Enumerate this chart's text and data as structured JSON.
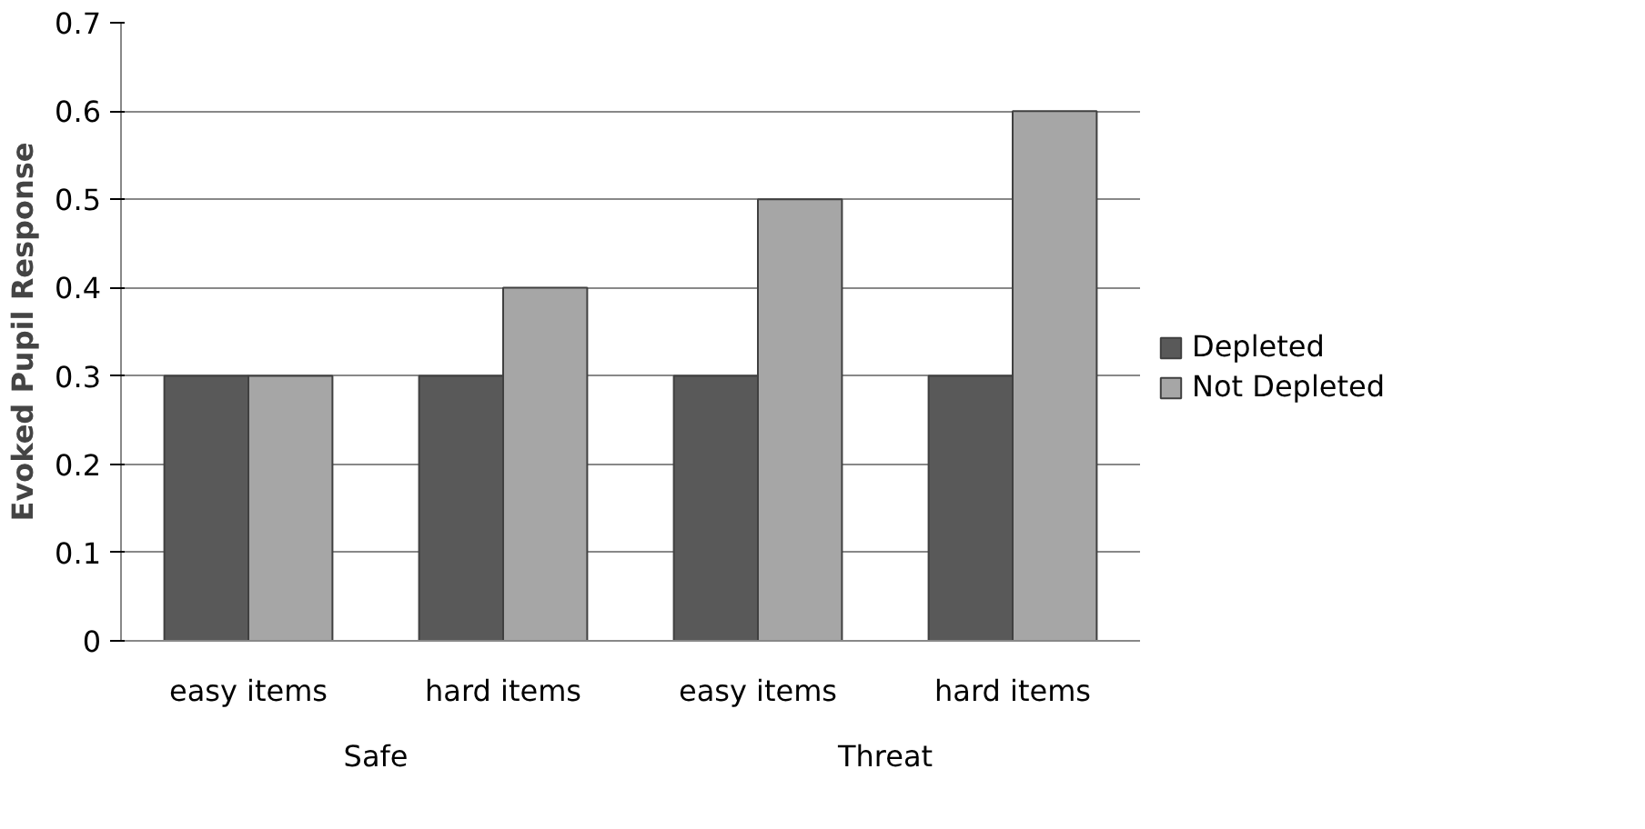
{
  "chart_data": {
    "type": "bar",
    "ylabel": "Evoked Pupil Response",
    "categories": [
      "easy items",
      "hard items",
      "easy items",
      "hard items"
    ],
    "annotations": [
      "Safe",
      "Threat"
    ],
    "series": [
      {
        "name": "Depleted",
        "color": "#595959",
        "values": [
          0.3,
          0.3,
          0.3,
          0.3
        ]
      },
      {
        "name": "Not Depleted",
        "color": "#a6a6a6",
        "values": [
          0.3,
          0.4,
          0.5,
          0.6
        ]
      }
    ],
    "ylim": [
      0,
      0.7
    ],
    "yticks": [
      0,
      0.1,
      0.2,
      0.3,
      0.4,
      0.5,
      0.6,
      0.7
    ],
    "grid": "y",
    "legend": "right"
  }
}
